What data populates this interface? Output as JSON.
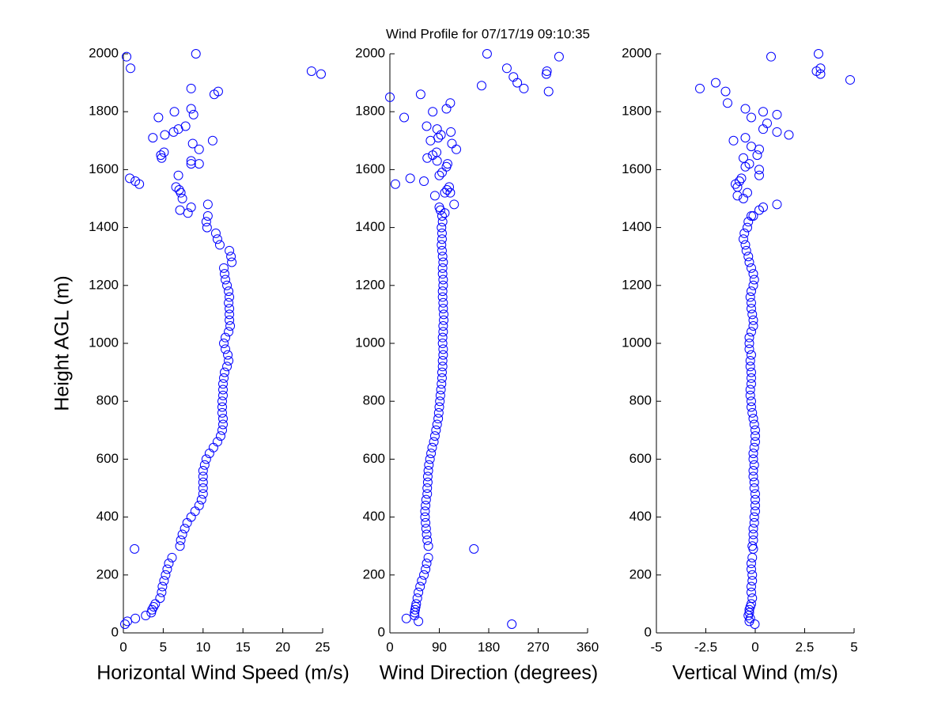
{
  "title": "Wind Profile for  07/17/19 09:10:35",
  "chart_data": [
    {
      "type": "scatter",
      "xlabel": "Horizontal Wind Speed (m/s)",
      "ylabel": "Height AGL (m)",
      "color": "#0000ff",
      "xlim": [
        0,
        25
      ],
      "xticks": [
        0,
        5,
        10,
        15,
        20,
        25
      ],
      "ylim": [
        0,
        2000
      ],
      "yticks": [
        0,
        200,
        400,
        600,
        800,
        1000,
        1200,
        1400,
        1600,
        1800,
        2000
      ],
      "x": [
        0.2,
        0.5,
        1.5,
        2.8,
        3.5,
        3.6,
        3.8,
        4.0,
        4.6,
        4.8,
        4.9,
        5.1,
        5.3,
        5.5,
        5.7,
        6.1,
        1.4,
        7.1,
        7.2,
        7.4,
        7.7,
        8.0,
        8.5,
        9.0,
        9.5,
        9.8,
        10.0,
        10.0,
        10.0,
        10.0,
        10.0,
        10.2,
        10.4,
        10.8,
        11.3,
        11.8,
        12.2,
        12.4,
        12.5,
        12.5,
        12.4,
        12.4,
        12.4,
        12.5,
        12.5,
        12.5,
        12.6,
        12.7,
        13.0,
        13.2,
        13.1,
        12.8,
        12.6,
        12.8,
        13.2,
        13.4,
        13.3,
        13.3,
        13.3,
        13.2,
        13.3,
        13.2,
        13.0,
        12.8,
        12.7,
        12.6,
        13.6,
        13.5,
        13.3,
        12.1,
        11.8,
        11.6,
        10.5,
        10.4,
        10.6,
        8.1,
        7.1,
        8.5,
        10.6,
        7.4,
        7.2,
        7.0,
        6.6,
        2.0,
        1.5,
        0.8,
        6.9,
        9.5,
        8.5,
        8.5,
        4.8,
        4.7,
        5.1,
        9.5,
        8.7,
        11.2,
        3.7,
        5.2,
        6.3,
        6.9,
        7.8,
        8.8,
        4.4,
        6.4,
        8.5,
        11.4,
        11.9,
        8.5,
        23.6,
        24.8,
        0.9,
        0.4,
        9.1
      ],
      "y": [
        30,
        40,
        50,
        60,
        70,
        80,
        90,
        100,
        120,
        140,
        160,
        180,
        200,
        220,
        240,
        260,
        290,
        300,
        320,
        340,
        360,
        380,
        400,
        420,
        440,
        460,
        480,
        500,
        520,
        540,
        560,
        580,
        600,
        620,
        640,
        660,
        680,
        700,
        720,
        740,
        760,
        780,
        800,
        820,
        840,
        860,
        880,
        900,
        920,
        940,
        960,
        980,
        1000,
        1020,
        1040,
        1060,
        1080,
        1100,
        1120,
        1140,
        1160,
        1180,
        1200,
        1220,
        1240,
        1260,
        1280,
        1300,
        1320,
        1340,
        1360,
        1380,
        1400,
        1420,
        1440,
        1450,
        1460,
        1470,
        1480,
        1500,
        1520,
        1530,
        1540,
        1550,
        1560,
        1570,
        1580,
        1620,
        1620,
        1630,
        1640,
        1650,
        1660,
        1670,
        1690,
        1700,
        1710,
        1720,
        1730,
        1740,
        1750,
        1790,
        1780,
        1800,
        1810,
        1860,
        1870,
        1880,
        1940,
        1930,
        1950,
        1990,
        2000
      ]
    },
    {
      "type": "scatter",
      "xlabel": "Wind Direction (degrees)",
      "color": "#0000ff",
      "xlim": [
        0,
        360
      ],
      "xticks": [
        0,
        90,
        180,
        270,
        360
      ],
      "ylim": [
        0,
        2000
      ],
      "yticks": [
        0,
        200,
        400,
        600,
        800,
        1000,
        1200,
        1400,
        1600,
        1800,
        2000
      ],
      "x": [
        222,
        52,
        30,
        45,
        45,
        46,
        47,
        48,
        50,
        52,
        55,
        58,
        62,
        65,
        67,
        70,
        153,
        70,
        68,
        67,
        66,
        65,
        64,
        64,
        65,
        66,
        68,
        68,
        69,
        69,
        70,
        71,
        73,
        75,
        77,
        80,
        82,
        84,
        86,
        88,
        89,
        90,
        91,
        92,
        93,
        94,
        95,
        95,
        96,
        96,
        97,
        97,
        96,
        96,
        97,
        97,
        98,
        98,
        97,
        97,
        96,
        96,
        97,
        97,
        96,
        96,
        97,
        96,
        95,
        94,
        95,
        95,
        94,
        96,
        95,
        100,
        92,
        90,
        117,
        82,
        100,
        110,
        104,
        108,
        10,
        37,
        62,
        90,
        95,
        103,
        105,
        86,
        68,
        78,
        85,
        121,
        113,
        74,
        88,
        93,
        111,
        86,
        67,
        78,
        103,
        110,
        26,
        0,
        56,
        167,
        244,
        289,
        232,
        225,
        213,
        285,
        286,
        177,
        308
      ],
      "y": [
        30,
        40,
        50,
        60,
        70,
        80,
        90,
        100,
        120,
        140,
        160,
        180,
        200,
        220,
        240,
        260,
        290,
        300,
        320,
        340,
        360,
        380,
        400,
        420,
        440,
        460,
        480,
        500,
        520,
        540,
        560,
        580,
        600,
        620,
        640,
        660,
        680,
        700,
        720,
        740,
        760,
        780,
        800,
        820,
        840,
        860,
        880,
        900,
        920,
        940,
        960,
        980,
        1000,
        1020,
        1040,
        1060,
        1080,
        1100,
        1120,
        1140,
        1160,
        1180,
        1200,
        1220,
        1240,
        1260,
        1280,
        1300,
        1320,
        1340,
        1360,
        1380,
        1400,
        1420,
        1440,
        1450,
        1460,
        1470,
        1480,
        1510,
        1520,
        1520,
        1530,
        1540,
        1550,
        1570,
        1560,
        1580,
        1590,
        1610,
        1620,
        1630,
        1640,
        1650,
        1660,
        1670,
        1690,
        1700,
        1710,
        1720,
        1730,
        1740,
        1750,
        1800,
        1810,
        1830,
        1780,
        1850,
        1860,
        1890,
        1880,
        1870,
        1900,
        1920,
        1950,
        1930,
        1940,
        2000,
        1990
      ]
    },
    {
      "type": "scatter",
      "xlabel": "Vertical Wind (m/s)",
      "color": "#0000ff",
      "xlim": [
        -5,
        5
      ],
      "xticks": [
        -5,
        -2.5,
        0,
        2.5,
        5
      ],
      "ylim": [
        0,
        2000
      ],
      "yticks": [
        0,
        200,
        400,
        600,
        800,
        1000,
        1200,
        1400,
        1600,
        1800,
        2000
      ],
      "x": [
        -0.02,
        -0.3,
        -0.25,
        -0.35,
        -0.3,
        -0.3,
        -0.25,
        -0.2,
        -0.15,
        -0.2,
        -0.2,
        -0.15,
        -0.15,
        -0.2,
        -0.2,
        -0.15,
        -0.1,
        -0.15,
        -0.1,
        -0.1,
        -0.1,
        -0.05,
        -0.05,
        0,
        0,
        0,
        0,
        -0.05,
        -0.05,
        -0.1,
        -0.1,
        -0.05,
        -0.1,
        -0.1,
        -0.05,
        0,
        0,
        0,
        -0.05,
        -0.1,
        -0.15,
        -0.2,
        -0.2,
        -0.25,
        -0.25,
        -0.2,
        -0.2,
        -0.2,
        -0.25,
        -0.25,
        -0.2,
        -0.3,
        -0.3,
        -0.3,
        -0.2,
        -0.1,
        -0.1,
        -0.15,
        -0.2,
        -0.2,
        -0.25,
        -0.2,
        -0.1,
        -0.05,
        -0.1,
        -0.2,
        -0.3,
        -0.35,
        -0.45,
        -0.5,
        -0.6,
        -0.55,
        -0.4,
        -0.35,
        -0.2,
        -0.1,
        0.2,
        0.4,
        1.1,
        -0.9,
        -0.6,
        -0.4,
        -0.9,
        -0.8,
        -0.7,
        -1.0,
        0.2,
        0.2,
        -0.5,
        -0.3,
        -0.6,
        0.1,
        0.2,
        -0.2,
        -1.1,
        -0.5,
        1.7,
        1.1,
        0.4,
        0.6,
        -0.2,
        1.1,
        0.4,
        -0.5,
        -1.4,
        -1.5,
        -2.8,
        -2.0,
        4.8,
        3.3,
        3.1,
        3.3,
        0.8,
        3.2
      ],
      "y": [
        30,
        40,
        50,
        60,
        70,
        80,
        90,
        100,
        120,
        140,
        160,
        180,
        200,
        220,
        240,
        260,
        290,
        300,
        320,
        340,
        360,
        380,
        400,
        420,
        440,
        460,
        480,
        500,
        520,
        540,
        560,
        580,
        600,
        620,
        640,
        660,
        680,
        700,
        720,
        740,
        760,
        780,
        800,
        820,
        840,
        860,
        880,
        900,
        920,
        940,
        960,
        980,
        1000,
        1020,
        1040,
        1060,
        1080,
        1100,
        1120,
        1140,
        1160,
        1180,
        1200,
        1220,
        1240,
        1260,
        1280,
        1300,
        1320,
        1340,
        1360,
        1380,
        1400,
        1420,
        1440,
        1440,
        1460,
        1470,
        1480,
        1510,
        1500,
        1520,
        1540,
        1560,
        1570,
        1550,
        1580,
        1600,
        1610,
        1620,
        1640,
        1650,
        1670,
        1680,
        1700,
        1710,
        1720,
        1730,
        1740,
        1760,
        1780,
        1790,
        1800,
        1810,
        1830,
        1870,
        1880,
        1900,
        1910,
        1930,
        1940,
        1950,
        1990,
        2000
      ]
    }
  ]
}
